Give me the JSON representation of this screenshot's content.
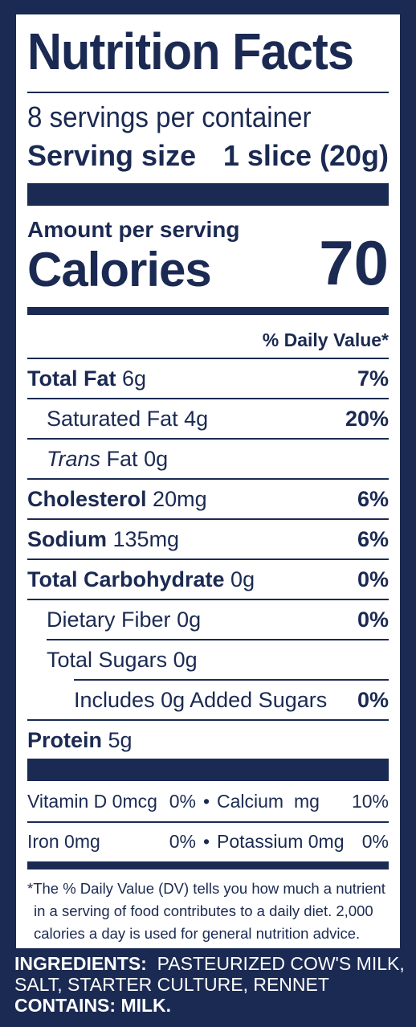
{
  "colors": {
    "navy": "#1b2a52",
    "white": "#ffffff"
  },
  "title": "Nutrition Facts",
  "servings_per_container": "8 servings per container",
  "serving_size_label": "Serving size",
  "serving_size_value": "1 slice (20g)",
  "amount_per_serving": "Amount per serving",
  "calories_label": "Calories",
  "calories_value": "70",
  "daily_value_header": "% Daily Value*",
  "nutrients": [
    {
      "name": "Total Fat",
      "amount": "6g",
      "dv": "7%"
    },
    {
      "name": "Saturated Fat",
      "amount": "4g",
      "dv": "20%"
    },
    {
      "name_italic": "Trans",
      "name": "Fat",
      "amount": "0g",
      "dv": ""
    },
    {
      "name": "Cholesterol",
      "amount": "20mg",
      "dv": "6%"
    },
    {
      "name": "Sodium",
      "amount": "135mg",
      "dv": "6%"
    },
    {
      "name": "Total Carbohydrate",
      "amount": "0g",
      "dv": "0%"
    },
    {
      "name": "Dietary Fiber",
      "amount": "0g",
      "dv": "0%"
    },
    {
      "name": "Total Sugars",
      "amount": "0g",
      "dv": ""
    },
    {
      "name": "Includes 0g Added Sugars",
      "amount": "",
      "dv": "0%"
    },
    {
      "name": "Protein",
      "amount": "5g",
      "dv": ""
    }
  ],
  "vitamins": [
    {
      "a_name": "Vitamin D 0mcg",
      "a_dv": "0%",
      "b_name": "Calcium",
      "b_amount": "mg",
      "b_dv": "10%"
    },
    {
      "a_name": "Iron 0mg",
      "a_dv": "0%",
      "b_name": "Potassium 0mg",
      "b_amount": "",
      "b_dv": "0%"
    }
  ],
  "bullet": "•",
  "footnote": [
    "*The % Daily Value (DV) tells you how much a nutrient",
    "in a serving of food contributes to a daily diet. 2,000",
    "calories a day is used for general nutrition advice."
  ],
  "ingredients_label": "INGREDIENTS:",
  "ingredients_text": "PASTEURIZED COW'S MILK,",
  "ingredients_text_2": "SALT, STARTER CULTURE, RENNET",
  "contains_label": "CONTAINS: MILK."
}
